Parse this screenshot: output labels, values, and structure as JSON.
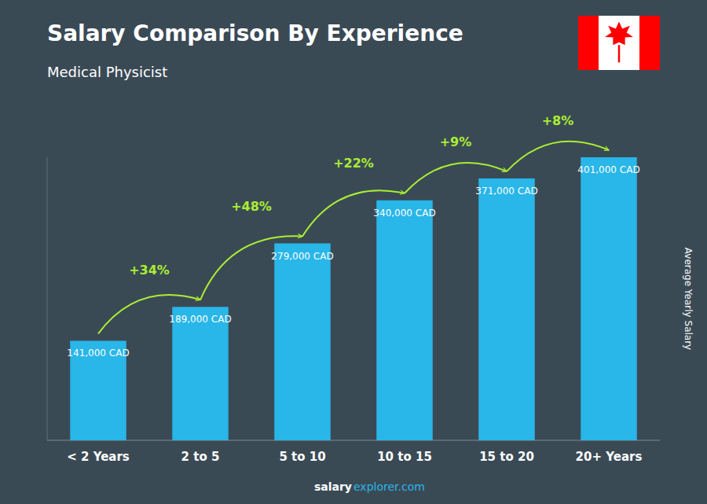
{
  "chart_data": {
    "type": "bar",
    "title": "Salary Comparison By Experience",
    "subtitle": "Medical Physicist",
    "categories": [
      "< 2 Years",
      "2 to 5",
      "5 to 10",
      "10 to 15",
      "15 to 20",
      "20+ Years"
    ],
    "values": [
      141000,
      189000,
      279000,
      340000,
      371000,
      401000
    ],
    "value_labels": [
      "141,000 CAD",
      "189,000 CAD",
      "279,000 CAD",
      "340,000 CAD",
      "371,000 CAD",
      "401,000 CAD"
    ],
    "data_labels": true,
    "annotations": [
      "+34%",
      "+48%",
      "+22%",
      "+9%",
      "+8%"
    ],
    "color": "#29b6e8",
    "ylabel": "Average Yearly Salary",
    "footer": [
      "salary",
      "explorer.com"
    ],
    "ylim": [
      0,
      401000
    ],
    "tick_labels": "x",
    "grid": false
  }
}
